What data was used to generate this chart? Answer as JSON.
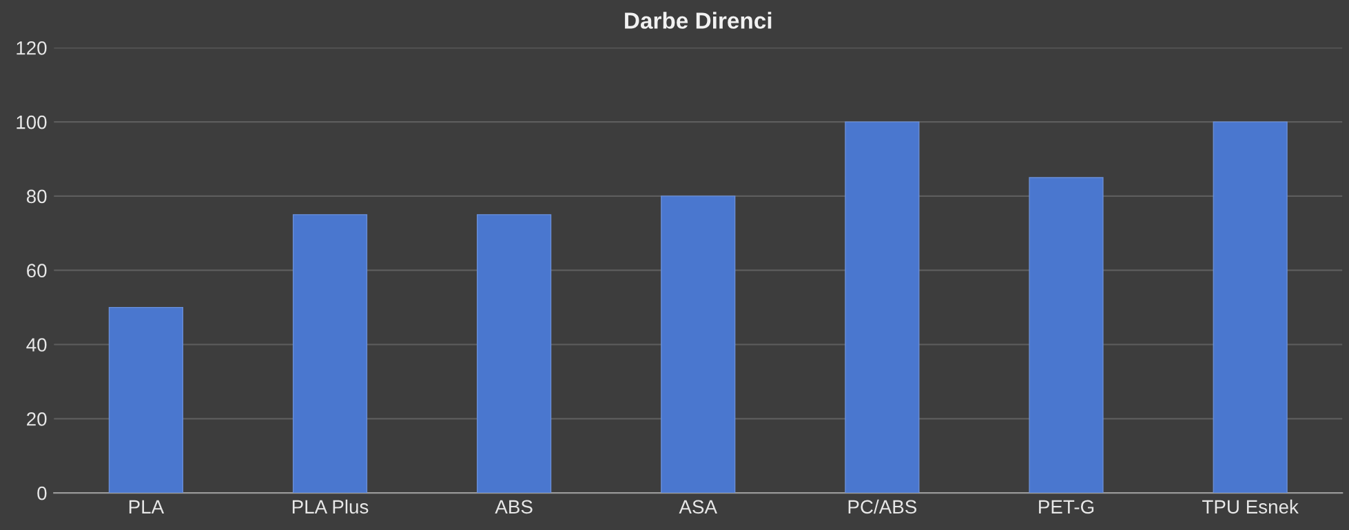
{
  "chart_data": {
    "type": "bar",
    "title": "Darbe Direnci",
    "categories": [
      "PLA",
      "PLA Plus",
      "ABS",
      "ASA",
      "PC/ABS",
      "PET-G",
      "TPU Esnek"
    ],
    "values": [
      50,
      75,
      75,
      80,
      100,
      85,
      100
    ],
    "color": "#4a77cf",
    "ylim": [
      0,
      120
    ],
    "yticks": [
      0,
      20,
      40,
      60,
      80,
      100,
      120
    ],
    "grid": "y"
  }
}
